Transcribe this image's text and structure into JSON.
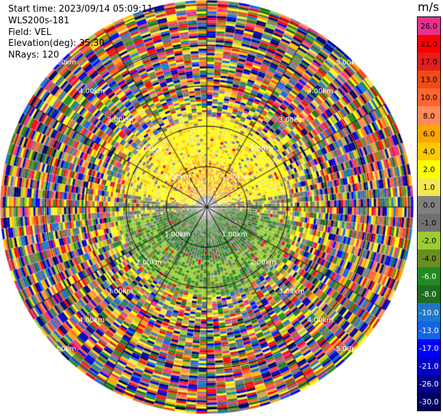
{
  "header": {
    "start_time": "Start time: 2023/09/14 05:09:11",
    "instrument": "WLS200s-181",
    "field": "Field: VEL",
    "elevation": "Elevation(deg): 35.30",
    "nrays": "NRays: 120"
  },
  "colorbar": {
    "unit": "m/s",
    "segments": [
      {
        "label": "26.0",
        "color": "#e8308f"
      },
      {
        "label": "21.0",
        "color": "#ff0000"
      },
      {
        "label": "17.0",
        "color": "#e31e1e"
      },
      {
        "label": "13.0",
        "color": "#f04b14"
      },
      {
        "label": "10.0",
        "color": "#ff6432"
      },
      {
        "label": "8.0",
        "color": "#ff8a5a"
      },
      {
        "label": "6.0",
        "color": "#ffa500"
      },
      {
        "label": "4.0",
        "color": "#ffc800"
      },
      {
        "label": "2.0",
        "color": "#ffff00"
      },
      {
        "label": "1.0",
        "color": "#f2e850"
      },
      {
        "label": "0.0",
        "color": "#808080"
      },
      {
        "label": "-1.0",
        "color": "#707070"
      },
      {
        "label": "-2.0",
        "color": "#9acd32"
      },
      {
        "label": "-4.0",
        "color": "#6b8e23"
      },
      {
        "label": "-6.0",
        "color": "#228b22"
      },
      {
        "label": "-8.0",
        "color": "#1e6e1e"
      },
      {
        "label": "-10.0",
        "color": "#1e78c8"
      },
      {
        "label": "-13.0",
        "color": "#1464e6"
      },
      {
        "label": "-17.0",
        "color": "#0000ff"
      },
      {
        "label": "-21.0",
        "color": "#0000c8"
      },
      {
        "label": "-26.0",
        "color": "#00008b"
      },
      {
        "label": "-30.0",
        "color": "#000060"
      }
    ]
  },
  "range_rings": [
    {
      "label": "1.00km",
      "km": 1
    },
    {
      "label": "2.00km",
      "km": 2
    },
    {
      "label": "3.00km",
      "km": 3
    },
    {
      "label": "4.00km",
      "km": 4
    },
    {
      "label": "5.00km",
      "km": 5
    }
  ]
}
